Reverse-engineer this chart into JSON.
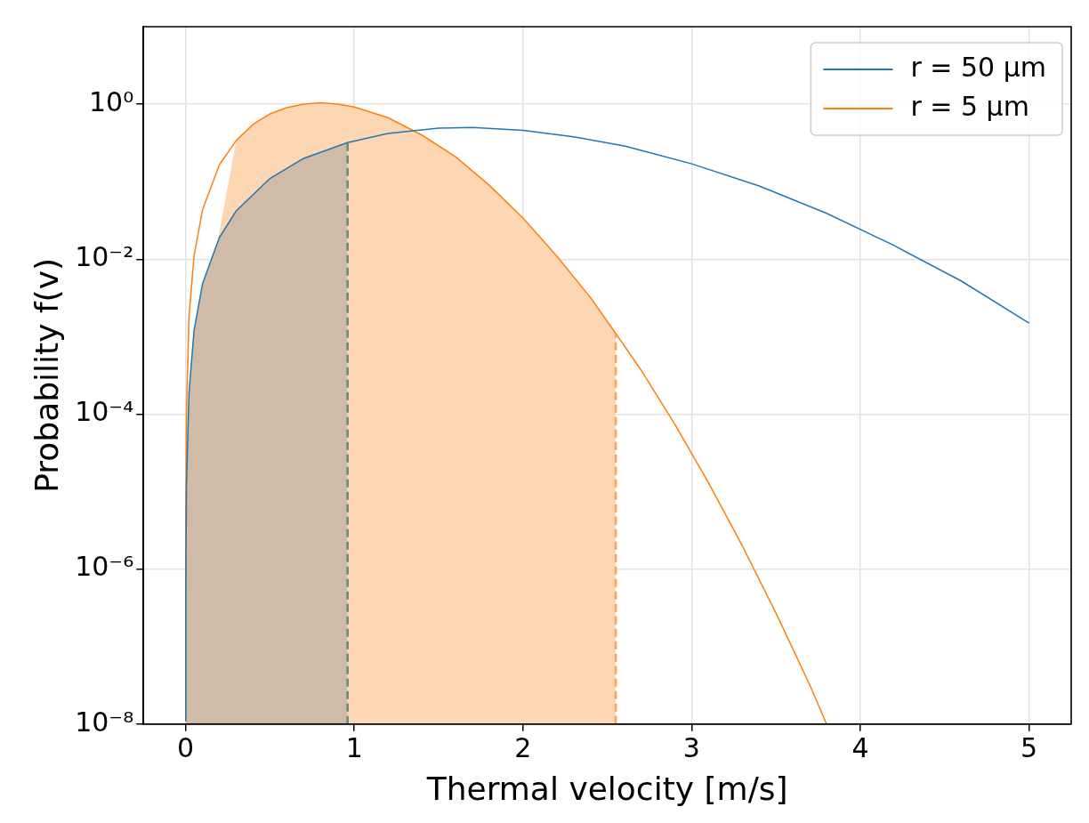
{
  "chart_data": {
    "type": "line",
    "xlabel": "Thermal velocity [m/s]",
    "ylabel": "Probability f(v)",
    "xlim": [
      -0.25,
      5.25
    ],
    "xticks": [
      0,
      1,
      2,
      3,
      4,
      5
    ],
    "ylim": [
      1e-08,
      10
    ],
    "yticks": [
      {
        "value": 1e-08,
        "label": "10⁻⁸"
      },
      {
        "value": 1e-06,
        "label": "10⁻⁶"
      },
      {
        "value": 0.0001,
        "label": "10⁻⁴"
      },
      {
        "value": 0.01,
        "label": "10⁻²"
      },
      {
        "value": 1,
        "label": "10⁰"
      }
    ],
    "log": "y",
    "grid": true,
    "legend": "top right",
    "line_style": "solid",
    "series": [
      {
        "name": "r = 50 μm",
        "color": "#1f77b4",
        "x": [
          0.00015,
          0.001,
          0.005,
          0.02,
          0.05,
          0.1,
          0.2,
          0.3,
          0.5,
          0.7,
          0.96,
          1.2,
          1.5,
          1.7,
          2.0,
          2.3,
          2.6,
          3.0,
          3.4,
          3.8,
          4.2,
          4.6,
          5.0
        ],
        "values": [
          1.1e-08,
          4.9e-07,
          1.2e-05,
          0.00019,
          0.0012,
          0.0048,
          0.019,
          0.042,
          0.11,
          0.2,
          0.32,
          0.42,
          0.49,
          0.5,
          0.46,
          0.38,
          0.29,
          0.17,
          0.088,
          0.039,
          0.015,
          0.0052,
          0.0015
        ]
      },
      {
        "name": "r = 5 μm",
        "color": "#ff7f0e",
        "x": [
          5e-05,
          0.001,
          0.005,
          0.02,
          0.05,
          0.1,
          0.2,
          0.3,
          0.4,
          0.5,
          0.6,
          0.7,
          0.8,
          0.9,
          1.0,
          1.2,
          1.4,
          1.6,
          1.8,
          2.0,
          2.2,
          2.4,
          2.55,
          2.7,
          2.9,
          3.1,
          3.3,
          3.5,
          3.7,
          3.8
        ],
        "values": [
          1.1e-08,
          4.4e-06,
          0.00011,
          0.0018,
          0.011,
          0.043,
          0.165,
          0.34,
          0.55,
          0.75,
          0.9,
          1.0,
          1.04,
          1.0,
          0.92,
          0.67,
          0.4,
          0.21,
          0.09,
          0.034,
          0.011,
          0.0032,
          0.0011,
          0.00037,
          7.4e-05,
          1.3e-05,
          2e-06,
          2.7e-07,
          3.2e-08,
          1e-08
        ]
      },
      {
        "type": "area",
        "color": "#fdd7b3",
        "x": [
          5e-05,
          0.001,
          0.005,
          0.3,
          0.4,
          0.5,
          0.6,
          0.7,
          0.8,
          0.9,
          1.0,
          1.2,
          1.4,
          1.6,
          1.8,
          2.0,
          2.2,
          2.4,
          2.55
        ],
        "values": [
          1.1e-08,
          4.4e-06,
          0.00011,
          0.34,
          0.55,
          0.75,
          0.9,
          1.0,
          1.04,
          1.0,
          0.92,
          0.67,
          0.4,
          0.21,
          0.09,
          0.034,
          0.011,
          0.0032,
          0.0011
        ]
      },
      {
        "type": "area",
        "color": "#cfbba8",
        "x": [
          0.00015,
          0.001,
          0.005,
          0.02,
          0.05,
          0.1,
          0.2,
          0.3,
          0.5,
          0.7,
          0.96
        ],
        "values": [
          1.1e-08,
          4.9e-07,
          1.2e-05,
          0.00019,
          0.0012,
          0.0048,
          0.019,
          0.042,
          0.11,
          0.2,
          0.32
        ]
      }
    ],
    "ref_lines": [
      {
        "axis": "x",
        "value": 0.96,
        "color": "#6e8a7b",
        "line_style": "dashed"
      },
      {
        "axis": "x",
        "value": 2.55,
        "color": "#ff9f5c",
        "line_style": "dashed"
      }
    ]
  }
}
